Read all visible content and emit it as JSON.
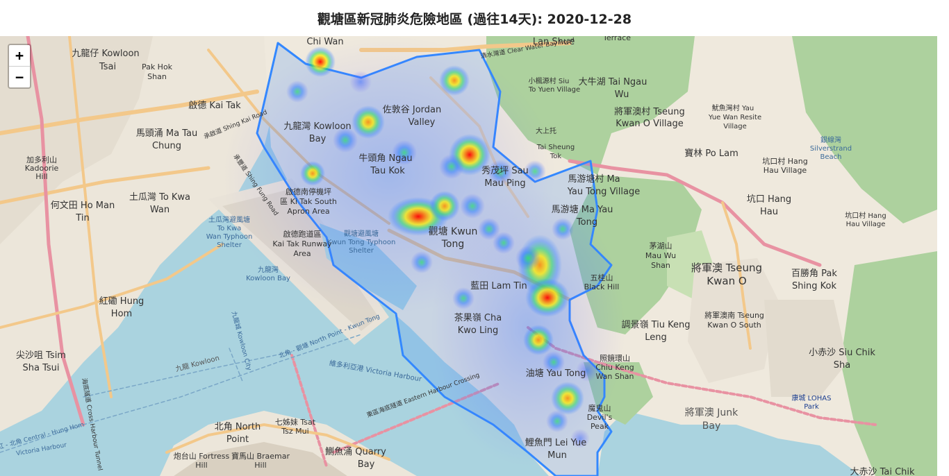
{
  "title": "觀塘區新冠肺炎危險地區 (過往14天): 2020-12-28",
  "zoom": {
    "in_label": "+",
    "out_label": "−"
  },
  "map_labels": [
    "Chi Wan",
    "Lan Shue",
    "Terrace",
    "九龍仔 Kowloon",
    "Tsai",
    "Pak Hok",
    "Shan",
    "啟德 Kai Tak",
    "佐敦谷 Jordan",
    "Valley",
    "九龍灣 Kowloon",
    "Bay",
    "馬頭涌 Ma Tau",
    "Chung",
    "加多利山",
    "Kadoorie",
    "Hill",
    "牛頭角 Ngau",
    "Tau Kok",
    "秀茂坪 Sau",
    "Mau Ping",
    "土瓜灣 To Kwa",
    "Wan",
    "何文田 Ho Man",
    "Tin",
    "啟德南停機坪",
    "區 Ki Tak South",
    "Apron Area",
    "啟德跑道區",
    "Kai Tak Runway",
    "Area",
    "觀塘 Kwun",
    "Tong",
    "觀塘避風塘",
    "Kwun Tong Typhoon",
    "Shelter",
    "土瓜灣避風塘",
    "To Kwa",
    "Wan Typhoon",
    "Shelter",
    "九龍灣",
    "Kowloon Bay",
    "紅磡 Hung",
    "Hom",
    "尖沙咀 Tsim",
    "Sha Tsui",
    "油塘 Yau Tong",
    "茶果嶺 Cha",
    "Kwo Ling",
    "藍田 Lam Tin",
    "鯉魚門 Lei Yue",
    "Mun",
    "北角 North",
    "Point",
    "七姊妹 Tsat",
    "Tsz Mui",
    "鰂魚涌 Quarry",
    "Bay",
    "炮台山 Fortress",
    "Hill",
    "寶馬山 Braemar",
    "Hill",
    "維多利亞港 Victoria Harbour",
    "東區海底隧道 Eastern Harbour Crossing",
    "九龍 Kowloon",
    "大牛湖 Tai Ngau",
    "Wu",
    "將軍澳村 Tseung",
    "Kwan O Village",
    "寶林 Po Lam",
    "坑口村 Hang",
    "Hau Village",
    "馬游塘村 Ma",
    "Yau Tong Village",
    "馬游塘 Ma Yau",
    "Tong",
    "茅湖山",
    "Mau Wu",
    "Shan",
    "五桂山",
    "Black Hill",
    "將軍澳 Tseung",
    "Kwan O",
    "調景嶺 Tiu Keng",
    "Leng",
    "將軍澳南 Tseung",
    "Kwan O South",
    "百勝角 Pak",
    "Shing Kok",
    "魔鬼山",
    "Devil's",
    "Peak",
    "照鏡環山",
    "Chiu Keng",
    "Wan Shan",
    "將軍澳 Junk",
    "Bay",
    "小赤沙 Siu Chik",
    "Sha",
    "坑口 Hang",
    "Hau",
    "清水灣道 Clear Water Bay Road",
    "承啟道 Shing Kai Road",
    "承豐道 Shing Fung Road",
    "大上托",
    "Tai Sheung",
    "Tok",
    "小楓源村 Siu",
    "To Yuen Village",
    "魷魚灣村 Yau",
    "Yue Wan Resite",
    "Village",
    "銀線灣",
    "Silverstrand",
    "Beach",
    "坑口村 Hang",
    "Hau Village",
    "康城 LOHAS",
    "Park",
    "大赤沙 Tai Chik",
    "北角 - 觀塘 North Point - Kwun Tong",
    "九龍城 Kowloon City",
    "海底隧道 Cross Harbour Tunnel",
    "鐵紅 - 北角 Central - Hung Hom",
    "Victoria Harbour"
  ],
  "heat_points": [
    {
      "lng": 114.2068,
      "lat": 22.3373,
      "intensity": 0.6
    },
    {
      "lng": 114.2089,
      "lat": 22.3305,
      "intensity": 0.5
    },
    {
      "lng": 114.2155,
      "lat": 22.3268,
      "intensity": 0.65
    },
    {
      "lng": 114.2181,
      "lat": 22.3249,
      "intensity": 0.4
    },
    {
      "lng": 114.2209,
      "lat": 22.3152,
      "intensity": 0.55
    },
    {
      "lng": 114.2279,
      "lat": 22.3221,
      "intensity": 0.95
    },
    {
      "lng": 114.224,
      "lat": 22.3088,
      "intensity": 0.9
    },
    {
      "lng": 114.2273,
      "lat": 22.3112,
      "intensity": 0.7
    },
    {
      "lng": 114.2328,
      "lat": 22.3035,
      "intensity": 0.5
    },
    {
      "lng": 114.2346,
      "lat": 22.32,
      "intensity": 0.6
    },
    {
      "lng": 114.2391,
      "lat": 22.3101,
      "intensity": 0.5
    },
    {
      "lng": 114.2424,
      "lat": 22.303,
      "intensity": 0.8
    },
    {
      "lng": 114.2458,
      "lat": 22.2975,
      "intensity": 1.0
    },
    {
      "lng": 114.244,
      "lat": 22.288,
      "intensity": 0.7
    },
    {
      "lng": 114.2458,
      "lat": 22.28,
      "intensity": 0.75
    }
  ],
  "boundary_name": "Kwun Tong District"
}
